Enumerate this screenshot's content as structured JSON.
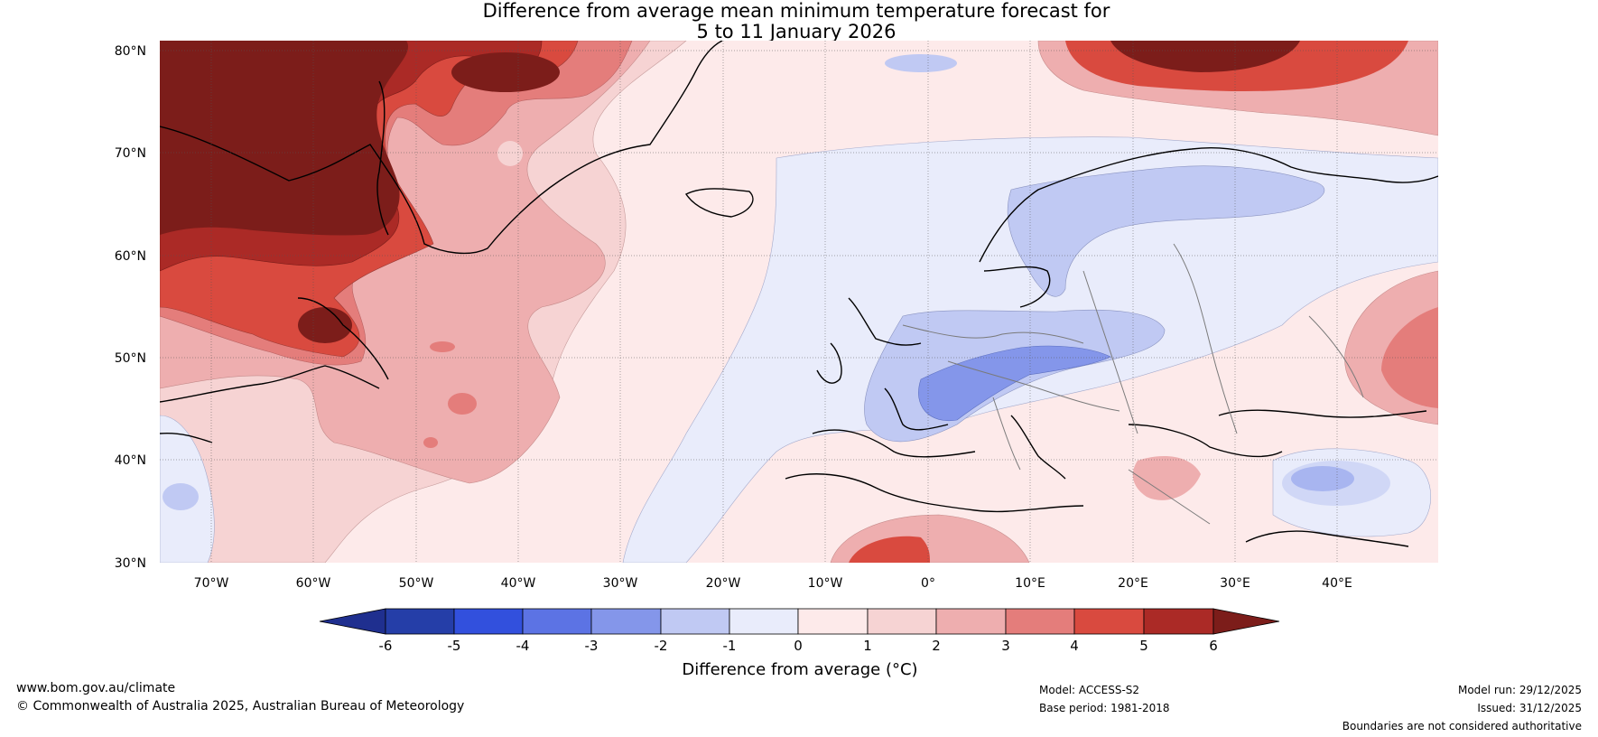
{
  "title": {
    "line1": "Difference from average mean minimum temperature forecast for",
    "line2": "5 to 11 January 2026"
  },
  "map": {
    "lat_labels": [
      "80°N",
      "70°N",
      "60°N",
      "50°N",
      "40°N",
      "30°N"
    ],
    "lon_labels": [
      "70°W",
      "60°W",
      "50°W",
      "40°W",
      "30°W",
      "20°W",
      "10°W",
      "0°",
      "10°E",
      "20°E",
      "30°E",
      "40°E"
    ],
    "extent": {
      "lon_min": -75,
      "lon_max": 50,
      "lat_min": 30,
      "lat_max": 81
    },
    "colors": {
      "anom_n6": "#1f2f8f",
      "anom_n5": "#253ea8",
      "anom_n4": "#3250dd",
      "anom_n3": "#5c73e4",
      "anom_n2": "#8496ea",
      "anom_n1": "#c0c9f3",
      "anom_0": "#e9ecfb",
      "anom_p0": "#fdeaea",
      "anom_p1": "#f6d3d3",
      "anom_p2": "#eeaeaf",
      "anom_p3": "#e47d7b",
      "anom_p4": "#d94a3f",
      "anom_p5": "#ab2a26",
      "anom_p6": "#7c1d1a"
    }
  },
  "colorbar": {
    "ticks": [
      "-6",
      "-5",
      "-4",
      "-3",
      "-2",
      "-1",
      "0",
      "1",
      "2",
      "3",
      "4",
      "5",
      "6"
    ],
    "label": "Difference from average (°C)"
  },
  "footer": {
    "website": "www.bom.gov.au/climate",
    "copyright": "© Commonwealth of Australia 2025, Australian Bureau of Meteorology",
    "model": "Model: ACCESS-S2",
    "base_period": "Base period: 1981-2018",
    "model_run": "Model run: 29/12/2025",
    "issued": "Issued: 31/12/2025",
    "disclaimer": "Boundaries are not considered authoritative"
  }
}
